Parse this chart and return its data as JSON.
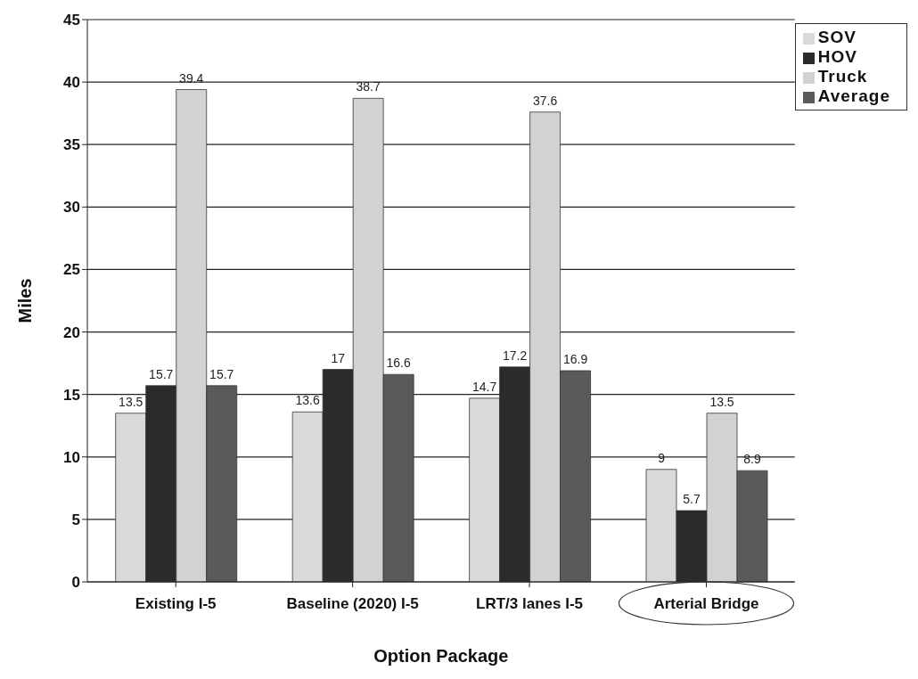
{
  "chart_data": {
    "type": "bar",
    "xlabel": "Option Package",
    "ylabel": "Miles",
    "categories": [
      "Existing I-5",
      "Baseline (2020) I-5",
      "LRT/3 lanes I-5",
      "Arterial Bridge"
    ],
    "series": [
      {
        "name": "SOV",
        "color": "#d9d9d9",
        "values": [
          13.5,
          13.6,
          14.7,
          9
        ]
      },
      {
        "name": "HOV",
        "color": "#2b2b2b",
        "values": [
          15.7,
          17,
          17.2,
          5.7
        ]
      },
      {
        "name": "Truck",
        "color": "#d2d2d2",
        "values": [
          39.4,
          38.7,
          37.6,
          13.5
        ]
      },
      {
        "name": "Average",
        "color": "#5a5a5a",
        "values": [
          15.7,
          16.6,
          16.9,
          8.9
        ]
      }
    ],
    "ylim": [
      0,
      45
    ],
    "yticks": [
      0,
      5,
      10,
      15,
      20,
      25,
      30,
      35,
      40,
      45
    ],
    "grid": "y",
    "legend": "top right",
    "data_labels": true
  }
}
